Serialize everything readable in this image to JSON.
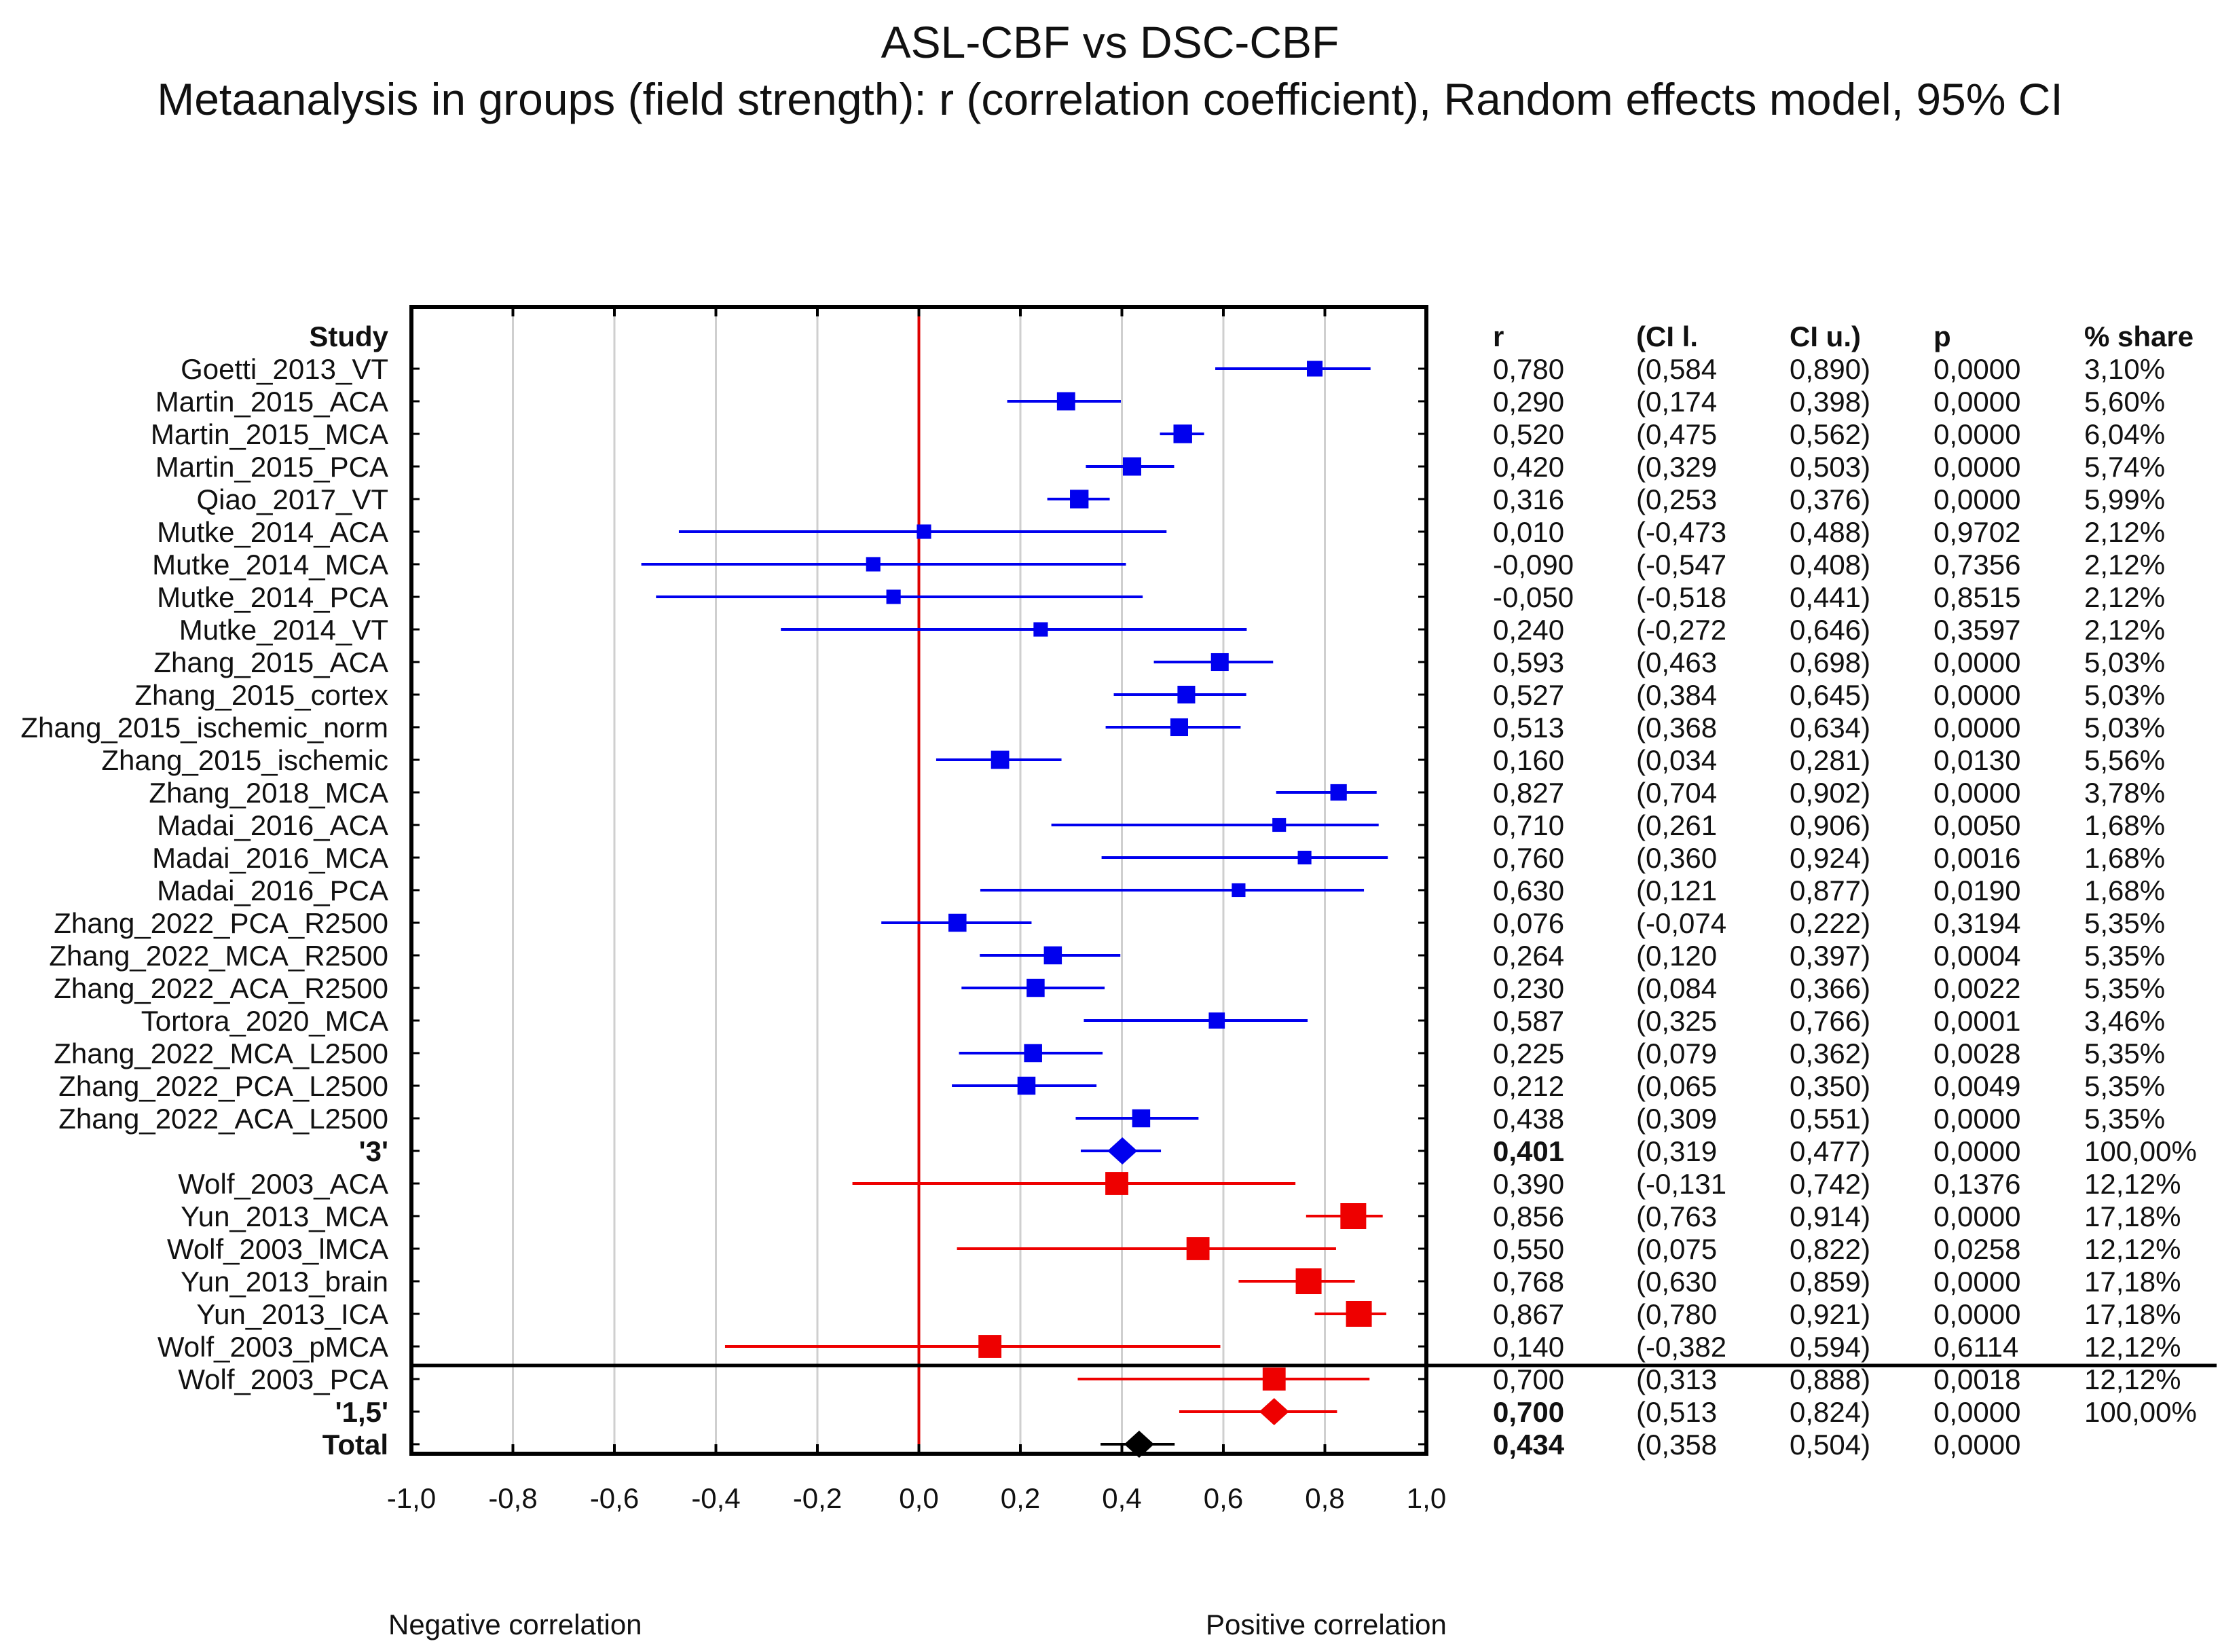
{
  "titles": {
    "line1": "ASL-CBF vs DSC-CBF",
    "line2": "Metaanalysis in groups (field strength): r (correlation coefficient), Random effects model, 95% CI"
  },
  "axis_text": {
    "negative": "Negative correlation",
    "positive": "Positive correlation"
  },
  "colors": {
    "group_3": "#0000ee",
    "group_1_5": "#ee0000",
    "total": "#000000",
    "zero_line": "#dd0000",
    "grid": "#cfcfcf"
  },
  "chart_data": {
    "type": "forest",
    "title": "ASL-CBF vs DSC-CBF",
    "subtitle": "Metaanalysis in groups (field strength): r (correlation coefficient), Random effects model, 95% CI",
    "xlabel_left": "Negative correlation",
    "xlabel_right": "Positive correlation",
    "xlim": [
      -1.0,
      1.0
    ],
    "xticks": [
      -1.0,
      -0.8,
      -0.6,
      -0.4,
      -0.2,
      0.0,
      0.2,
      0.4,
      0.6,
      0.8,
      1.0
    ],
    "xtick_labels": [
      "-1,0",
      "-0,8",
      "-0,6",
      "-0,4",
      "-0,2",
      "0,0",
      "0,2",
      "0,4",
      "0,6",
      "0,8",
      "1,0"
    ],
    "columns": [
      "Study",
      "r",
      "(CI l.",
      "CI u.)",
      "p",
      "% share"
    ],
    "studies": [
      "Goetti_2013_VT",
      "Martin_2015_ACA",
      "Martin_2015_MCA",
      "Martin_2015_PCA",
      "Qiao_2017_VT",
      "Mutke_2014_ACA",
      "Mutke_2014_MCA",
      "Mutke_2014_PCA",
      "Mutke_2014_VT",
      "Zhang_2015_ACA",
      "Zhang_2015_cortex",
      "Zhang_2015_ischemic_norm",
      "Zhang_2015_ischemic",
      "Zhang_2018_MCA",
      "Madai_2016_ACA",
      "Madai_2016_MCA",
      "Madai_2016_PCA",
      "Zhang_2022_PCA_R2500",
      "Zhang_2022_MCA_R2500",
      "Zhang_2022_ACA_R2500",
      "Tortora_2020_MCA",
      "Zhang_2022_MCA_L2500",
      "Zhang_2022_PCA_L2500",
      "Zhang_2022_ACA_L2500",
      "'3'",
      "Wolf_2003_ACA",
      "Yun_2013_MCA",
      "Wolf_2003_lMCA",
      "Yun_2013_brain",
      "Yun_2013_ICA",
      "Wolf_2003_pMCA",
      "Wolf_2003_PCA",
      "'1,5'",
      "Total"
    ],
    "bold_rows": [
      "'3'",
      "'1,5'",
      "Total"
    ],
    "table": [
      {
        "r": "0,780",
        "cil": "(0,584",
        "ciu": "0,890)",
        "p": "0,0000",
        "share": "3,10%"
      },
      {
        "r": "0,290",
        "cil": "(0,174",
        "ciu": "0,398)",
        "p": "0,0000",
        "share": "5,60%"
      },
      {
        "r": "0,520",
        "cil": "(0,475",
        "ciu": "0,562)",
        "p": "0,0000",
        "share": "6,04%"
      },
      {
        "r": "0,420",
        "cil": "(0,329",
        "ciu": "0,503)",
        "p": "0,0000",
        "share": "5,74%"
      },
      {
        "r": "0,316",
        "cil": "(0,253",
        "ciu": "0,376)",
        "p": "0,0000",
        "share": "5,99%"
      },
      {
        "r": "0,010",
        "cil": "(-0,473",
        "ciu": "0,488)",
        "p": "0,9702",
        "share": "2,12%"
      },
      {
        "r": "-0,090",
        "cil": "(-0,547",
        "ciu": "0,408)",
        "p": "0,7356",
        "share": "2,12%"
      },
      {
        "r": "-0,050",
        "cil": "(-0,518",
        "ciu": "0,441)",
        "p": "0,8515",
        "share": "2,12%"
      },
      {
        "r": "0,240",
        "cil": "(-0,272",
        "ciu": "0,646)",
        "p": "0,3597",
        "share": "2,12%"
      },
      {
        "r": "0,593",
        "cil": "(0,463",
        "ciu": "0,698)",
        "p": "0,0000",
        "share": "5,03%"
      },
      {
        "r": "0,527",
        "cil": "(0,384",
        "ciu": "0,645)",
        "p": "0,0000",
        "share": "5,03%"
      },
      {
        "r": "0,513",
        "cil": "(0,368",
        "ciu": "0,634)",
        "p": "0,0000",
        "share": "5,03%"
      },
      {
        "r": "0,160",
        "cil": "(0,034",
        "ciu": "0,281)",
        "p": "0,0130",
        "share": "5,56%"
      },
      {
        "r": "0,827",
        "cil": "(0,704",
        "ciu": "0,902)",
        "p": "0,0000",
        "share": "3,78%"
      },
      {
        "r": "0,710",
        "cil": "(0,261",
        "ciu": "0,906)",
        "p": "0,0050",
        "share": "1,68%"
      },
      {
        "r": "0,760",
        "cil": "(0,360",
        "ciu": "0,924)",
        "p": "0,0016",
        "share": "1,68%"
      },
      {
        "r": "0,630",
        "cil": "(0,121",
        "ciu": "0,877)",
        "p": "0,0190",
        "share": "1,68%"
      },
      {
        "r": "0,076",
        "cil": "(-0,074",
        "ciu": "0,222)",
        "p": "0,3194",
        "share": "5,35%"
      },
      {
        "r": "0,264",
        "cil": "(0,120",
        "ciu": "0,397)",
        "p": "0,0004",
        "share": "5,35%"
      },
      {
        "r": "0,230",
        "cil": "(0,084",
        "ciu": "0,366)",
        "p": "0,0022",
        "share": "5,35%"
      },
      {
        "r": "0,587",
        "cil": "(0,325",
        "ciu": "0,766)",
        "p": "0,0001",
        "share": "3,46%"
      },
      {
        "r": "0,225",
        "cil": "(0,079",
        "ciu": "0,362)",
        "p": "0,0028",
        "share": "5,35%"
      },
      {
        "r": "0,212",
        "cil": "(0,065",
        "ciu": "0,350)",
        "p": "0,0049",
        "share": "5,35%"
      },
      {
        "r": "0,438",
        "cil": "(0,309",
        "ciu": "0,551)",
        "p": "0,0000",
        "share": "5,35%"
      },
      {
        "r": "0,401",
        "cil": "(0,319",
        "ciu": "0,477)",
        "p": "0,0000",
        "share": "100,00%"
      },
      {
        "r": "0,390",
        "cil": "(-0,131",
        "ciu": "0,742)",
        "p": "0,1376",
        "share": "12,12%"
      },
      {
        "r": "0,856",
        "cil": "(0,763",
        "ciu": "0,914)",
        "p": "0,0000",
        "share": "17,18%"
      },
      {
        "r": "0,550",
        "cil": "(0,075",
        "ciu": "0,822)",
        "p": "0,0258",
        "share": "12,12%"
      },
      {
        "r": "0,768",
        "cil": "(0,630",
        "ciu": "0,859)",
        "p": "0,0000",
        "share": "17,18%"
      },
      {
        "r": "0,867",
        "cil": "(0,780",
        "ciu": "0,921)",
        "p": "0,0000",
        "share": "17,18%"
      },
      {
        "r": "0,140",
        "cil": "(-0,382",
        "ciu": "0,594)",
        "p": "0,6114",
        "share": "12,12%"
      },
      {
        "r": "0,700",
        "cil": "(0,313",
        "ciu": "0,888)",
        "p": "0,0018",
        "share": "12,12%"
      },
      {
        "r": "0,700",
        "cil": "(0,513",
        "ciu": "0,824)",
        "p": "0,0000",
        "share": "100,00%"
      },
      {
        "r": "0,434",
        "cil": "(0,358",
        "ciu": "0,504)",
        "p": "0,0000",
        "share": ""
      }
    ],
    "markers": [
      {
        "group": "3",
        "kind": "study",
        "r": 0.78,
        "lo": 0.584,
        "hi": 0.89,
        "weight": 3.1
      },
      {
        "group": "3",
        "kind": "study",
        "r": 0.29,
        "lo": 0.174,
        "hi": 0.398,
        "weight": 5.6
      },
      {
        "group": "3",
        "kind": "study",
        "r": 0.52,
        "lo": 0.475,
        "hi": 0.562,
        "weight": 6.04
      },
      {
        "group": "3",
        "kind": "study",
        "r": 0.42,
        "lo": 0.329,
        "hi": 0.503,
        "weight": 5.74
      },
      {
        "group": "3",
        "kind": "study",
        "r": 0.316,
        "lo": 0.253,
        "hi": 0.376,
        "weight": 5.99
      },
      {
        "group": "3",
        "kind": "study",
        "r": 0.01,
        "lo": -0.473,
        "hi": 0.488,
        "weight": 2.12
      },
      {
        "group": "3",
        "kind": "study",
        "r": -0.09,
        "lo": -0.547,
        "hi": 0.408,
        "weight": 2.12
      },
      {
        "group": "3",
        "kind": "study",
        "r": -0.05,
        "lo": -0.518,
        "hi": 0.441,
        "weight": 2.12
      },
      {
        "group": "3",
        "kind": "study",
        "r": 0.24,
        "lo": -0.272,
        "hi": 0.646,
        "weight": 2.12
      },
      {
        "group": "3",
        "kind": "study",
        "r": 0.593,
        "lo": 0.463,
        "hi": 0.698,
        "weight": 5.03
      },
      {
        "group": "3",
        "kind": "study",
        "r": 0.527,
        "lo": 0.384,
        "hi": 0.645,
        "weight": 5.03
      },
      {
        "group": "3",
        "kind": "study",
        "r": 0.513,
        "lo": 0.368,
        "hi": 0.634,
        "weight": 5.03
      },
      {
        "group": "3",
        "kind": "study",
        "r": 0.16,
        "lo": 0.034,
        "hi": 0.281,
        "weight": 5.56
      },
      {
        "group": "3",
        "kind": "study",
        "r": 0.827,
        "lo": 0.704,
        "hi": 0.902,
        "weight": 3.78
      },
      {
        "group": "3",
        "kind": "study",
        "r": 0.71,
        "lo": 0.261,
        "hi": 0.906,
        "weight": 1.68
      },
      {
        "group": "3",
        "kind": "study",
        "r": 0.76,
        "lo": 0.36,
        "hi": 0.924,
        "weight": 1.68
      },
      {
        "group": "3",
        "kind": "study",
        "r": 0.63,
        "lo": 0.121,
        "hi": 0.877,
        "weight": 1.68
      },
      {
        "group": "3",
        "kind": "study",
        "r": 0.076,
        "lo": -0.074,
        "hi": 0.222,
        "weight": 5.35
      },
      {
        "group": "3",
        "kind": "study",
        "r": 0.264,
        "lo": 0.12,
        "hi": 0.397,
        "weight": 5.35
      },
      {
        "group": "3",
        "kind": "study",
        "r": 0.23,
        "lo": 0.084,
        "hi": 0.366,
        "weight": 5.35
      },
      {
        "group": "3",
        "kind": "study",
        "r": 0.587,
        "lo": 0.325,
        "hi": 0.766,
        "weight": 3.46
      },
      {
        "group": "3",
        "kind": "study",
        "r": 0.225,
        "lo": 0.079,
        "hi": 0.362,
        "weight": 5.35
      },
      {
        "group": "3",
        "kind": "study",
        "r": 0.212,
        "lo": 0.065,
        "hi": 0.35,
        "weight": 5.35
      },
      {
        "group": "3",
        "kind": "study",
        "r": 0.438,
        "lo": 0.309,
        "hi": 0.551,
        "weight": 5.35
      },
      {
        "group": "3",
        "kind": "summary",
        "r": 0.401,
        "lo": 0.319,
        "hi": 0.477,
        "weight": 100
      },
      {
        "group": "1,5",
        "kind": "study",
        "r": 0.39,
        "lo": -0.131,
        "hi": 0.742,
        "weight": 12.12
      },
      {
        "group": "1,5",
        "kind": "study",
        "r": 0.856,
        "lo": 0.763,
        "hi": 0.914,
        "weight": 17.18
      },
      {
        "group": "1,5",
        "kind": "study",
        "r": 0.55,
        "lo": 0.075,
        "hi": 0.822,
        "weight": 12.12
      },
      {
        "group": "1,5",
        "kind": "study",
        "r": 0.768,
        "lo": 0.63,
        "hi": 0.859,
        "weight": 17.18
      },
      {
        "group": "1,5",
        "kind": "study",
        "r": 0.867,
        "lo": 0.78,
        "hi": 0.921,
        "weight": 17.18
      },
      {
        "group": "1,5",
        "kind": "study",
        "r": 0.14,
        "lo": -0.382,
        "hi": 0.594,
        "weight": 12.12
      },
      {
        "group": "1,5",
        "kind": "study",
        "r": 0.7,
        "lo": 0.313,
        "hi": 0.888,
        "weight": 12.12
      },
      {
        "group": "1,5",
        "kind": "summary",
        "r": 0.7,
        "lo": 0.513,
        "hi": 0.824,
        "weight": 100
      },
      {
        "group": "total",
        "kind": "total",
        "r": 0.434,
        "lo": 0.358,
        "hi": 0.504,
        "weight": 100
      }
    ]
  }
}
